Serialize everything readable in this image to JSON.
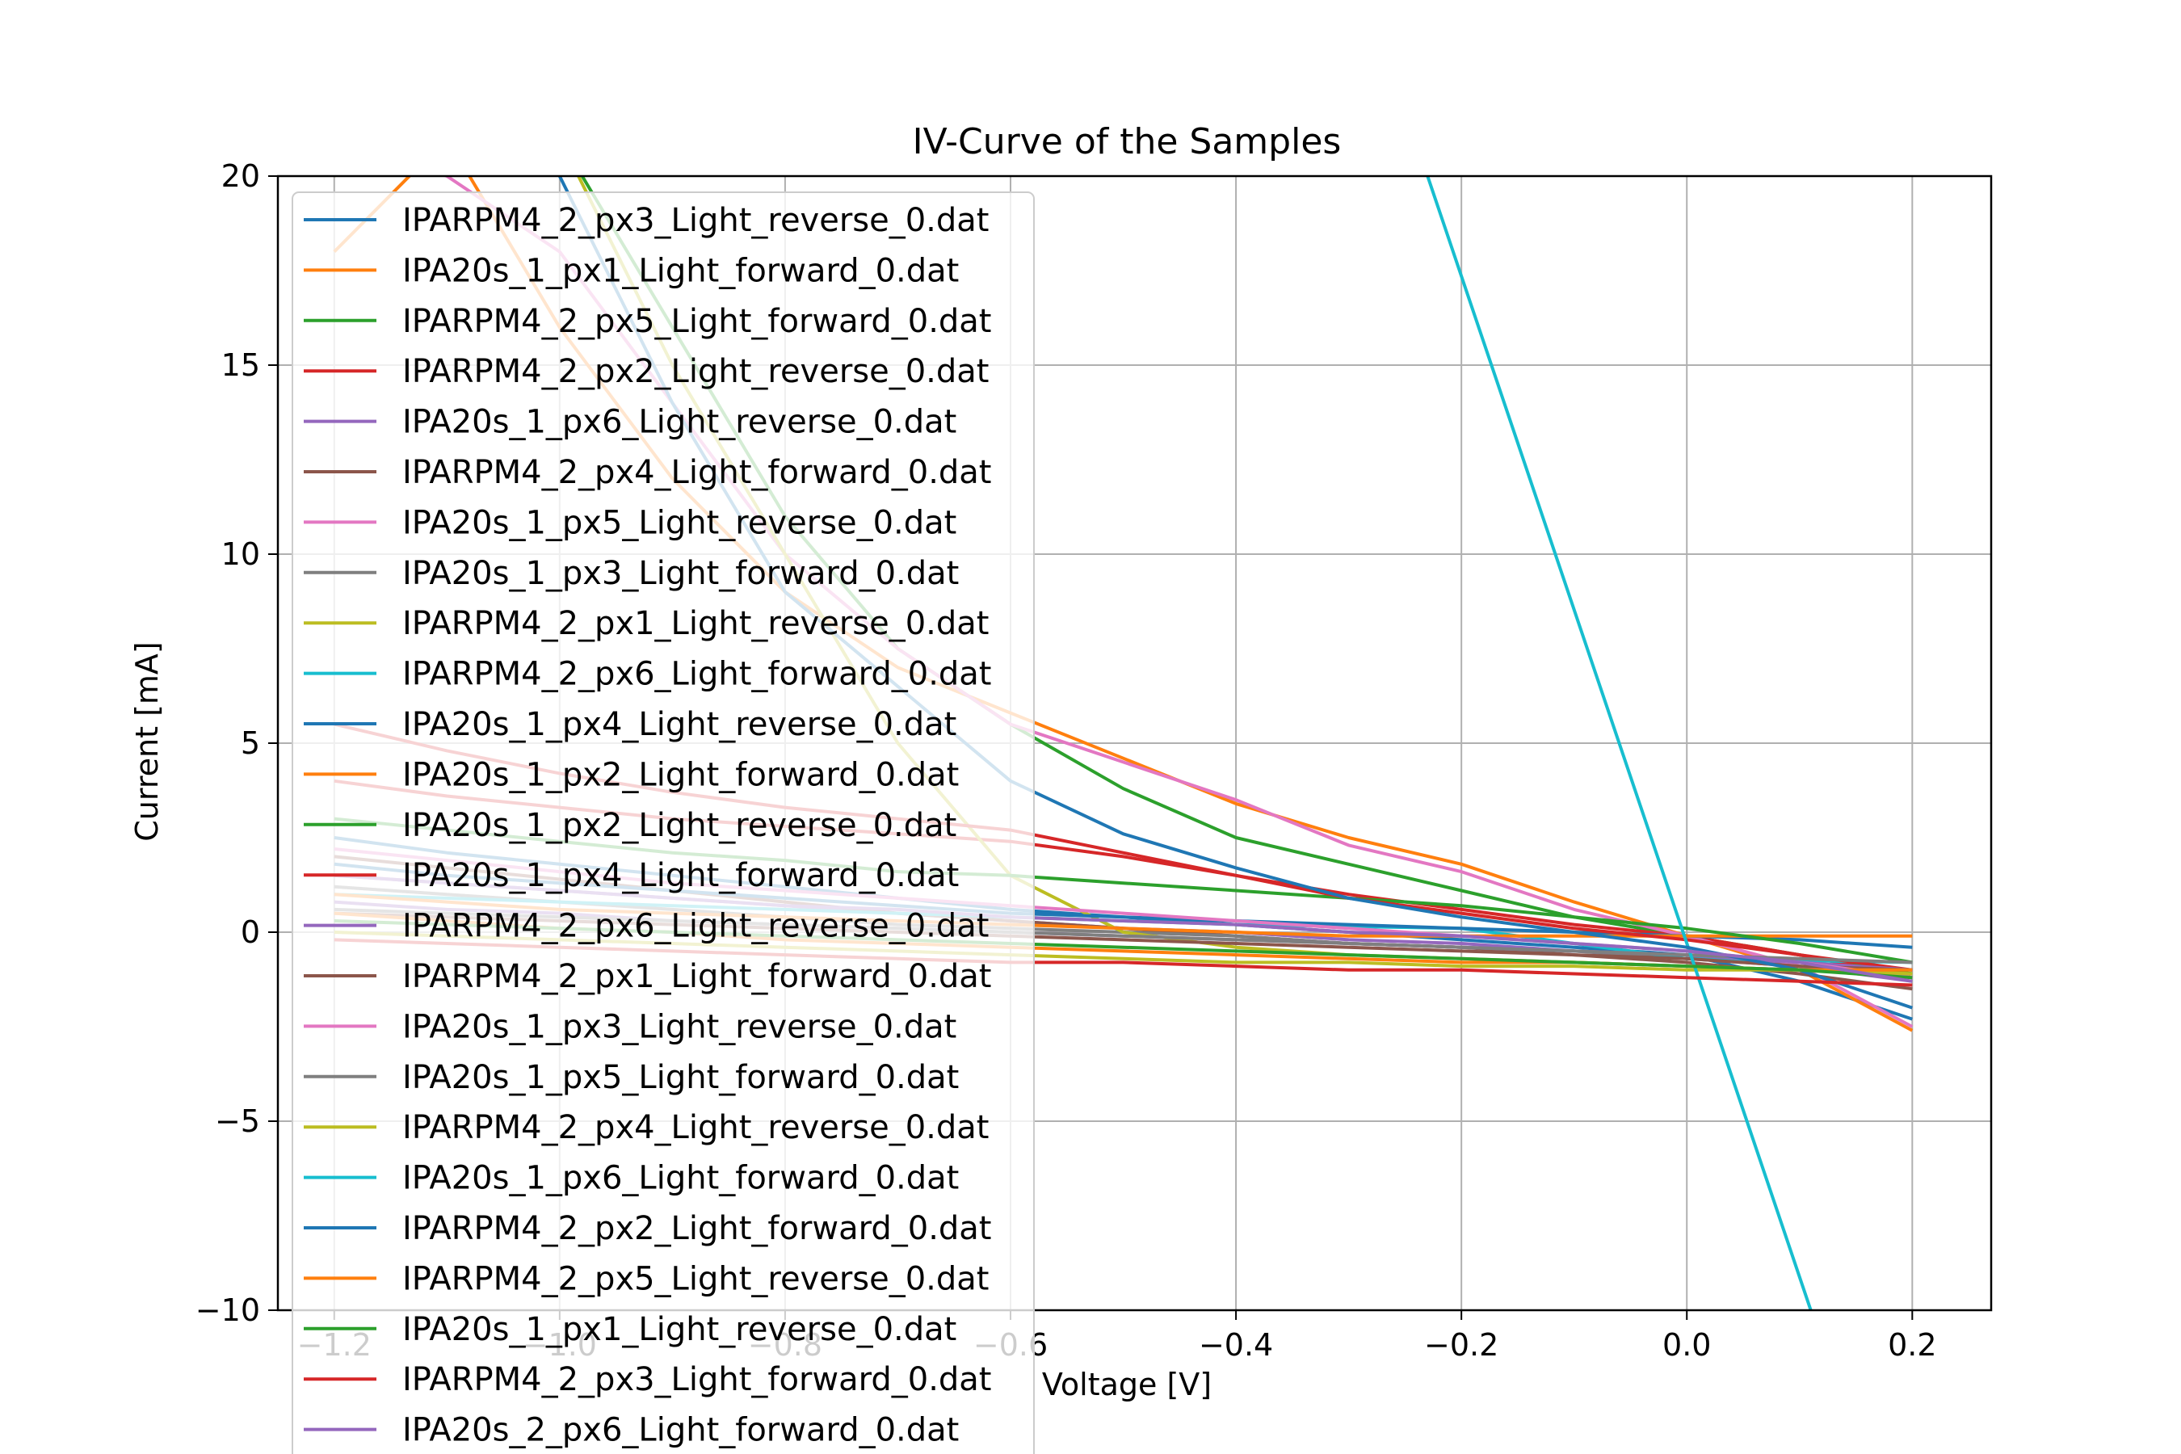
{
  "chart_data": {
    "type": "line",
    "title": "IV-Curve of the Samples",
    "xlabel": "Voltage [V]",
    "ylabel": "Current [mA]",
    "xlim": [
      -1.25,
      0.27
    ],
    "ylim": [
      -10,
      20
    ],
    "grid": true,
    "legend_position": "upper-left",
    "x_ticks": [
      -1.2,
      -1.0,
      -0.8,
      -0.6,
      -0.4,
      -0.2,
      0.0,
      0.2
    ],
    "x_tick_labels": [
      "−1.2",
      "−1.0",
      "−0.8",
      "−0.6",
      "−0.4",
      "−0.2",
      "0.0",
      "0.2"
    ],
    "y_ticks": [
      -10,
      -5,
      0,
      5,
      10,
      15,
      20
    ],
    "y_tick_labels": [
      "−10",
      "−5",
      "0",
      "5",
      "10",
      "15",
      "20"
    ],
    "series": [
      {
        "name": "IPARPM4_2_px3_Light_reverse_0.dat",
        "color": "#1f77b4",
        "x": [
          -1.2,
          -1.1,
          -1.0,
          -0.9,
          -0.8,
          -0.7,
          -0.6,
          -0.5,
          -0.4,
          -0.3,
          -0.2,
          -0.1,
          0.0,
          0.1,
          0.2
        ],
        "y": [
          2.5,
          2.1,
          1.8,
          1.5,
          1.2,
          0.9,
          0.6,
          0.4,
          0.2,
          0.0,
          -0.2,
          -0.4,
          -0.6,
          -1.3,
          -2.3
        ]
      },
      {
        "name": "IPA20s_1_px1_Light_forward_0.dat",
        "color": "#ff7f0e",
        "x": [
          -1.2,
          -1.1,
          -1.0,
          -0.9,
          -0.8,
          -0.7,
          -0.6,
          -0.5,
          -0.4,
          -0.3,
          -0.2,
          -0.1,
          0.0,
          0.1,
          0.2
        ],
        "y": [
          18.0,
          21.0,
          16.0,
          12.0,
          9.0,
          7.0,
          5.8,
          4.6,
          3.4,
          2.5,
          1.8,
          0.8,
          -0.1,
          -1.0,
          -2.6
        ]
      },
      {
        "name": "IPARPM4_2_px5_Light_forward_0.dat",
        "color": "#2ca02c",
        "x": [
          -1.2,
          -1.1,
          -1.0,
          -0.9,
          -0.8,
          -0.7,
          -0.6,
          -0.5,
          -0.4,
          -0.3,
          -0.2,
          -0.1,
          0.0,
          0.1,
          0.2
        ],
        "y": [
          22.0,
          22.0,
          21.0,
          16.0,
          11.0,
          7.5,
          5.5,
          3.8,
          2.5,
          1.8,
          1.1,
          0.4,
          -0.1,
          -0.6,
          -1.1
        ]
      },
      {
        "name": "IPARPM4_2_px2_Light_reverse_0.dat",
        "color": "#d62728",
        "x": [
          -1.2,
          -1.1,
          -1.0,
          -0.9,
          -0.8,
          -0.7,
          -0.6,
          -0.5,
          -0.4,
          -0.3,
          -0.2,
          -0.1,
          0.0,
          0.1,
          0.2
        ],
        "y": [
          4.0,
          3.6,
          3.3,
          3.0,
          2.8,
          2.6,
          2.4,
          2.0,
          1.5,
          1.0,
          0.6,
          0.2,
          -0.1,
          -0.6,
          -1.2
        ]
      },
      {
        "name": "IPA20s_1_px6_Light_reverse_0.dat",
        "color": "#9467bd",
        "x": [
          -1.2,
          -1.1,
          -1.0,
          -0.9,
          -0.8,
          -0.7,
          -0.6,
          -0.5,
          -0.4,
          -0.3,
          -0.2,
          -0.1,
          0.0,
          0.1,
          0.2
        ],
        "y": [
          1.5,
          1.3,
          1.1,
          0.9,
          0.7,
          0.5,
          0.3,
          0.1,
          0.0,
          -0.2,
          -0.3,
          -0.5,
          -0.6,
          -0.9,
          -1.3
        ]
      },
      {
        "name": "IPARPM4_2_px4_Light_forward_0.dat",
        "color": "#8c564b",
        "x": [
          -1.2,
          -1.1,
          -1.0,
          -0.9,
          -0.8,
          -0.7,
          -0.6,
          -0.5,
          -0.4,
          -0.3,
          -0.2,
          -0.1,
          0.0,
          0.1,
          0.2
        ],
        "y": [
          2.0,
          1.7,
          1.4,
          1.1,
          0.8,
          0.5,
          0.3,
          0.1,
          -0.1,
          -0.3,
          -0.4,
          -0.6,
          -0.8,
          -1.1,
          -1.5
        ]
      },
      {
        "name": "IPA20s_1_px5_Light_reverse_0.dat",
        "color": "#e377c2",
        "x": [
          -1.2,
          -1.1,
          -1.0,
          -0.9,
          -0.8,
          -0.7,
          -0.6,
          -0.5,
          -0.4,
          -0.3,
          -0.2,
          -0.1,
          0.0,
          0.1,
          0.2
        ],
        "y": [
          21.0,
          20.0,
          18.0,
          14.0,
          10.0,
          7.5,
          5.5,
          4.5,
          3.5,
          2.3,
          1.6,
          0.6,
          -0.1,
          -0.9,
          -2.5
        ]
      },
      {
        "name": "IPA20s_1_px3_Light_forward_0.dat",
        "color": "#7f7f7f",
        "x": [
          -1.2,
          -1.1,
          -1.0,
          -0.9,
          -0.8,
          -0.7,
          -0.6,
          -0.5,
          -0.4,
          -0.3,
          -0.2,
          -0.1,
          0.0,
          0.1,
          0.2
        ],
        "y": [
          1.2,
          1.0,
          0.8,
          0.6,
          0.4,
          0.2,
          0.1,
          0.0,
          -0.1,
          -0.3,
          -0.4,
          -0.5,
          -0.7,
          -0.9,
          -1.2
        ]
      },
      {
        "name": "IPARPM4_2_px1_Light_reverse_0.dat",
        "color": "#bcbd22",
        "x": [
          -1.2,
          -1.1,
          -1.0,
          -0.9,
          -0.8,
          -0.7,
          -0.6,
          -0.5,
          -0.4,
          -0.3,
          -0.2,
          -0.1,
          0.0,
          0.1,
          0.2
        ],
        "y": [
          20.0,
          22.0,
          21.0,
          15.0,
          10.0,
          5.0,
          1.5,
          0.0,
          -0.4,
          -0.6,
          -0.7,
          -0.8,
          -0.9,
          -1.0,
          -1.1
        ]
      },
      {
        "name": "IPARPM4_2_px6_Light_forward_0.dat",
        "color": "#17becf",
        "x": [
          -1.2,
          -1.0,
          -0.8,
          -0.6,
          -0.4,
          -0.2,
          0.0,
          0.2
        ],
        "y": [
          1.0,
          0.8,
          0.6,
          0.4,
          0.2,
          0.1,
          -0.7,
          -0.8
        ]
      },
      {
        "name": "IPA20s_1_px4_Light_reverse_0.dat",
        "color": "#1f77b4",
        "x": [
          -1.2,
          -1.1,
          -1.0,
          -0.9,
          -0.8,
          -0.7,
          -0.6,
          -0.5,
          -0.4,
          -0.3,
          -0.2,
          -0.1,
          0.0,
          0.1,
          0.2
        ],
        "y": [
          1.8,
          1.5,
          1.3,
          1.1,
          0.9,
          0.7,
          0.5,
          0.4,
          0.3,
          0.2,
          0.1,
          0.0,
          -0.1,
          -0.2,
          -0.4
        ]
      },
      {
        "name": "IPA20s_1_px2_Light_forward_0.dat",
        "color": "#ff7f0e",
        "x": [
          -1.2,
          -1.1,
          -1.0,
          -0.9,
          -0.8,
          -0.7,
          -0.6,
          -0.5,
          -0.4,
          -0.3,
          -0.2,
          -0.1,
          0.0,
          0.1,
          0.2
        ],
        "y": [
          1.0,
          0.8,
          0.6,
          0.5,
          0.4,
          0.3,
          0.2,
          0.1,
          0.0,
          -0.1,
          -0.1,
          -0.1,
          -0.1,
          -0.1,
          -0.1
        ]
      },
      {
        "name": "IPA20s_1_px2_Light_reverse_0.dat",
        "color": "#2ca02c",
        "x": [
          -1.2,
          -1.1,
          -1.0,
          -0.9,
          -0.8,
          -0.7,
          -0.6,
          -0.5,
          -0.4,
          -0.3,
          -0.2,
          -0.1,
          0.0,
          0.1,
          0.2
        ],
        "y": [
          3.0,
          2.7,
          2.4,
          2.1,
          1.9,
          1.6,
          1.5,
          1.3,
          1.1,
          0.9,
          0.7,
          0.4,
          0.1,
          -0.3,
          -0.8
        ]
      },
      {
        "name": "IPA20s_1_px4_Light_forward_0.dat",
        "color": "#d62728",
        "x": [
          -1.2,
          -1.1,
          -1.0,
          -0.9,
          -0.8,
          -0.7,
          -0.6,
          -0.5,
          -0.4,
          -0.3,
          -0.2,
          -0.1,
          0.0,
          0.1,
          0.2
        ],
        "y": [
          5.5,
          4.8,
          4.2,
          3.7,
          3.3,
          3.0,
          2.7,
          2.1,
          1.5,
          0.9,
          0.5,
          0.1,
          -0.2,
          -0.6,
          -1.0
        ]
      },
      {
        "name": "IPARPM4_2_px6_Light_reverse_0.dat",
        "color": "#9467bd",
        "x": [
          -1.2,
          -1.1,
          -1.0,
          -0.9,
          -0.8,
          -0.7,
          -0.6,
          -0.5,
          -0.4,
          -0.3,
          -0.2,
          -0.1,
          0.0,
          0.1,
          0.2
        ],
        "y": [
          0.8,
          0.6,
          0.5,
          0.3,
          0.2,
          0.1,
          0.0,
          -0.1,
          -0.2,
          -0.3,
          -0.4,
          -0.5,
          -0.6,
          -0.8,
          -1.0
        ]
      },
      {
        "name": "IPARPM4_2_px1_Light_forward_0.dat",
        "color": "#8c564b",
        "x": [
          -1.2,
          -1.1,
          -1.0,
          -0.9,
          -0.8,
          -0.7,
          -0.6,
          -0.5,
          -0.4,
          -0.3,
          -0.2,
          -0.1,
          0.0,
          0.1,
          0.2
        ],
        "y": [
          0.5,
          0.4,
          0.3,
          0.2,
          0.1,
          0.0,
          -0.1,
          -0.2,
          -0.3,
          -0.4,
          -0.5,
          -0.6,
          -0.7,
          -0.9,
          -1.0
        ]
      },
      {
        "name": "IPA20s_1_px3_Light_reverse_0.dat",
        "color": "#e377c2",
        "x": [
          -1.2,
          -1.1,
          -1.0,
          -0.9,
          -0.8,
          -0.7,
          -0.6,
          -0.5,
          -0.4,
          -0.3,
          -0.2,
          -0.1,
          0.0,
          0.1,
          0.2
        ],
        "y": [
          2.2,
          1.9,
          1.6,
          1.3,
          1.1,
          0.9,
          0.7,
          0.5,
          0.3,
          0.1,
          -0.1,
          -0.3,
          -0.5,
          -0.8,
          -1.2
        ]
      },
      {
        "name": "IPA20s_1_px5_Light_forward_0.dat",
        "color": "#7f7f7f",
        "x": [
          -1.2,
          -1.1,
          -1.0,
          -0.9,
          -0.8,
          -0.7,
          -0.6,
          -0.5,
          -0.4,
          -0.3,
          -0.2,
          -0.1,
          0.0,
          0.1,
          0.2
        ],
        "y": [
          0.6,
          0.5,
          0.4,
          0.3,
          0.2,
          0.1,
          0.0,
          -0.1,
          -0.2,
          -0.3,
          -0.4,
          -0.5,
          -0.6,
          -0.7,
          -0.8
        ]
      },
      {
        "name": "IPARPM4_2_px4_Light_reverse_0.dat",
        "color": "#bcbd22",
        "x": [
          -1.2,
          -1.1,
          -1.0,
          -0.9,
          -0.8,
          -0.7,
          -0.6,
          -0.5,
          -0.4,
          -0.3,
          -0.2,
          -0.1,
          0.0,
          0.1,
          0.2
        ],
        "y": [
          0.0,
          -0.1,
          -0.2,
          -0.3,
          -0.4,
          -0.5,
          -0.6,
          -0.7,
          -0.8,
          -0.8,
          -0.9,
          -0.9,
          -1.0,
          -1.0,
          -1.1
        ]
      },
      {
        "name": "IPA20s_1_px6_Light_forward_0.dat",
        "color": "#17becf",
        "x": [
          -0.23,
          0.11
        ],
        "y": [
          20.0,
          -10.0
        ]
      },
      {
        "name": "IPARPM4_2_px2_Light_forward_0.dat",
        "color": "#1f77b4",
        "x": [
          -1.2,
          -1.1,
          -1.0,
          -0.9,
          -0.8,
          -0.7,
          -0.6,
          -0.5,
          -0.4,
          -0.3,
          -0.2,
          -0.1,
          0.0,
          0.1,
          0.2
        ],
        "y": [
          23.0,
          22.0,
          20.0,
          14.0,
          9.0,
          6.5,
          4.0,
          2.6,
          1.7,
          0.9,
          0.4,
          0.0,
          -0.4,
          -1.0,
          -2.0
        ]
      },
      {
        "name": "IPARPM4_2_px5_Light_reverse_0.dat",
        "color": "#ff7f0e",
        "x": [
          -1.2,
          -1.1,
          -1.0,
          -0.9,
          -0.8,
          -0.7,
          -0.6,
          -0.5,
          -0.4,
          -0.3,
          -0.2,
          -0.1,
          0.0,
          0.1,
          0.2
        ],
        "y": [
          0.5,
          0.3,
          0.1,
          0.0,
          -0.2,
          -0.3,
          -0.4,
          -0.5,
          -0.6,
          -0.7,
          -0.8,
          -0.8,
          -0.9,
          -1.0,
          -1.0
        ]
      },
      {
        "name": "IPA20s_1_px1_Light_reverse_0.dat",
        "color": "#2ca02c",
        "x": [
          -1.2,
          -1.1,
          -1.0,
          -0.9,
          -0.8,
          -0.7,
          -0.6,
          -0.5,
          -0.4,
          -0.3,
          -0.2,
          -0.1,
          0.0,
          0.1,
          0.2
        ],
        "y": [
          0.3,
          0.2,
          0.1,
          0.0,
          -0.1,
          -0.2,
          -0.3,
          -0.4,
          -0.5,
          -0.6,
          -0.7,
          -0.8,
          -0.9,
          -1.0,
          -1.2
        ]
      },
      {
        "name": "IPARPM4_2_px3_Light_forward_0.dat",
        "color": "#d62728",
        "x": [
          -1.2,
          -1.1,
          -1.0,
          -0.9,
          -0.8,
          -0.7,
          -0.6,
          -0.5,
          -0.4,
          -0.3,
          -0.2,
          -0.1,
          0.0,
          0.1,
          0.2
        ],
        "y": [
          -0.2,
          -0.3,
          -0.4,
          -0.5,
          -0.6,
          -0.7,
          -0.8,
          -0.8,
          -0.9,
          -1.0,
          -1.0,
          -1.1,
          -1.2,
          -1.3,
          -1.4
        ]
      },
      {
        "name": "IPA20s_2_px6_Light_forward_0.dat",
        "color": "#9467bd",
        "x": [
          -1.2,
          -1.1,
          -1.0,
          -0.9,
          -0.8,
          -0.7,
          -0.6,
          -0.5,
          -0.4,
          -0.3,
          -0.2,
          -0.1,
          0.0,
          0.1,
          0.2
        ],
        "y": [
          1.5,
          1.3,
          1.1,
          0.9,
          0.7,
          0.6,
          0.4,
          0.3,
          0.2,
          0.0,
          -0.1,
          -0.3,
          -0.5,
          -0.8,
          -1.3
        ]
      }
    ]
  }
}
